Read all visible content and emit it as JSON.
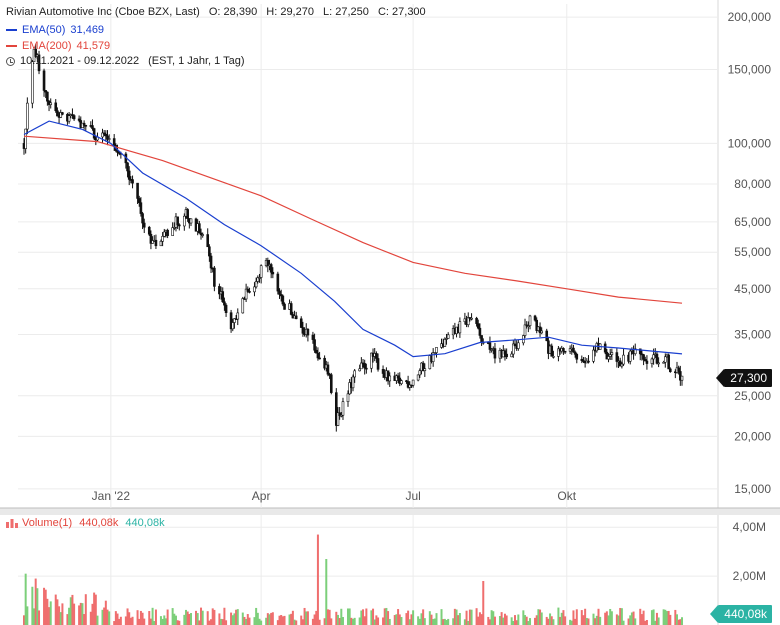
{
  "header": {
    "title": "Rivian Automotive Inc (Cboe BZX, Last)",
    "ohlc": {
      "open": "O: 28,390",
      "high": "H: 29,270",
      "low": "L: 27,250",
      "close": "C: 27,300"
    },
    "ema50": {
      "label": "EMA(50)",
      "value": "31,469",
      "color": "#1a3fcf"
    },
    "ema200": {
      "label": "EMA(200)",
      "value": "41,579",
      "color": "#e2453c"
    },
    "period": "10.11.2021 - 09.12.2022",
    "period_info": "(EST, 1 Jahr, 1 Tag)"
  },
  "volume_legend": {
    "label": "Volume(1)",
    "value_red": "440,08k",
    "value_teal": "440,08k"
  },
  "badges": {
    "price": "27,300",
    "volume": "440,08k"
  },
  "colors": {
    "price_badge": "#111111",
    "volume_badge": "#2bb3a4",
    "up": "#7ccf7a",
    "down": "#ef6e6e"
  },
  "chart_data": {
    "type": "candlestick",
    "y_scale": "log",
    "ylim": [
      13500,
      215000
    ],
    "y_ticks": [
      {
        "value": 200000,
        "label": "200,000"
      },
      {
        "value": 150000,
        "label": "150,000"
      },
      {
        "value": 100000,
        "label": "100,000"
      },
      {
        "value": 80000,
        "label": "80,000"
      },
      {
        "value": 65000,
        "label": "65,000"
      },
      {
        "value": 55000,
        "label": "55,000"
      },
      {
        "value": 45000,
        "label": "45,000"
      },
      {
        "value": 35000,
        "label": "35,000"
      },
      {
        "value": 25000,
        "label": "25,000"
      },
      {
        "value": 20000,
        "label": "20,000"
      },
      {
        "value": 15000,
        "label": "15,000"
      }
    ],
    "x_ticks": [
      {
        "date": "2022-01-01",
        "label": "Jan '22"
      },
      {
        "date": "2022-04-01",
        "label": "Apr"
      },
      {
        "date": "2022-07-01",
        "label": "Jul"
      },
      {
        "date": "2022-10-01",
        "label": "Okt"
      }
    ],
    "x_range": [
      "2021-11-10",
      "2022-12-09"
    ],
    "price_path": [
      {
        "date": "2021-11-10",
        "close": 100000
      },
      {
        "date": "2021-11-16",
        "close": 172000
      },
      {
        "date": "2021-11-22",
        "close": 130000
      },
      {
        "date": "2021-12-01",
        "close": 118000
      },
      {
        "date": "2021-12-15",
        "close": 110000
      },
      {
        "date": "2021-12-27",
        "close": 103000
      },
      {
        "date": "2022-01-07",
        "close": 97000
      },
      {
        "date": "2022-01-14",
        "close": 80000
      },
      {
        "date": "2022-01-21",
        "close": 63000
      },
      {
        "date": "2022-01-28",
        "close": 57000
      },
      {
        "date": "2022-02-04",
        "close": 62000
      },
      {
        "date": "2022-02-15",
        "close": 68000
      },
      {
        "date": "2022-02-25",
        "close": 61000
      },
      {
        "date": "2022-03-04",
        "close": 47000
      },
      {
        "date": "2022-03-14",
        "close": 37000
      },
      {
        "date": "2022-03-21",
        "close": 42000
      },
      {
        "date": "2022-03-28",
        "close": 47000
      },
      {
        "date": "2022-04-04",
        "close": 53000
      },
      {
        "date": "2022-04-11",
        "close": 43000
      },
      {
        "date": "2022-04-21",
        "close": 39000
      },
      {
        "date": "2022-05-02",
        "close": 33000
      },
      {
        "date": "2022-05-11",
        "close": 28500
      },
      {
        "date": "2022-05-16",
        "close": 22000
      },
      {
        "date": "2022-05-20",
        "close": 23500
      },
      {
        "date": "2022-05-27",
        "close": 28000
      },
      {
        "date": "2022-06-07",
        "close": 31000
      },
      {
        "date": "2022-06-17",
        "close": 27000
      },
      {
        "date": "2022-06-30",
        "close": 27000
      },
      {
        "date": "2022-07-06",
        "close": 29000
      },
      {
        "date": "2022-07-20",
        "close": 33500
      },
      {
        "date": "2022-07-29",
        "close": 36500
      },
      {
        "date": "2022-08-05",
        "close": 38500
      },
      {
        "date": "2022-08-12",
        "close": 33000
      },
      {
        "date": "2022-08-24",
        "close": 31000
      },
      {
        "date": "2022-09-02",
        "close": 33500
      },
      {
        "date": "2022-09-09",
        "close": 38000
      },
      {
        "date": "2022-09-16",
        "close": 35000
      },
      {
        "date": "2022-09-23",
        "close": 30500
      },
      {
        "date": "2022-09-30",
        "close": 32500
      },
      {
        "date": "2022-10-10",
        "close": 30000
      },
      {
        "date": "2022-10-20",
        "close": 33000
      },
      {
        "date": "2022-10-27",
        "close": 31000
      },
      {
        "date": "2022-11-03",
        "close": 30000
      },
      {
        "date": "2022-11-10",
        "close": 31500
      },
      {
        "date": "2022-11-17",
        "close": 30000
      },
      {
        "date": "2022-11-28",
        "close": 31000
      },
      {
        "date": "2022-12-05",
        "close": 28500
      },
      {
        "date": "2022-12-09",
        "close": 27300
      }
    ],
    "ema200": [
      {
        "date": "2021-11-10",
        "value": 104000
      },
      {
        "date": "2021-12-24",
        "value": 101000
      },
      {
        "date": "2022-02-01",
        "value": 91000
      },
      {
        "date": "2022-03-01",
        "value": 83000
      },
      {
        "date": "2022-04-01",
        "value": 75000
      },
      {
        "date": "2022-05-01",
        "value": 66000
      },
      {
        "date": "2022-06-01",
        "value": 58000
      },
      {
        "date": "2022-07-01",
        "value": 52000
      },
      {
        "date": "2022-08-01",
        "value": 49000
      },
      {
        "date": "2022-09-01",
        "value": 47000
      },
      {
        "date": "2022-10-01",
        "value": 45000
      },
      {
        "date": "2022-11-01",
        "value": 43000
      },
      {
        "date": "2022-12-09",
        "value": 41579
      }
    ],
    "ema50": [
      {
        "date": "2021-11-10",
        "value": 105000
      },
      {
        "date": "2021-11-25",
        "value": 113000
      },
      {
        "date": "2021-12-15",
        "value": 108000
      },
      {
        "date": "2022-01-01",
        "value": 100000
      },
      {
        "date": "2022-01-20",
        "value": 85000
      },
      {
        "date": "2022-02-15",
        "value": 74000
      },
      {
        "date": "2022-03-10",
        "value": 64000
      },
      {
        "date": "2022-04-01",
        "value": 57000
      },
      {
        "date": "2022-04-25",
        "value": 49000
      },
      {
        "date": "2022-05-15",
        "value": 42000
      },
      {
        "date": "2022-06-01",
        "value": 36000
      },
      {
        "date": "2022-06-20",
        "value": 33000
      },
      {
        "date": "2022-07-01",
        "value": 31000
      },
      {
        "date": "2022-07-20",
        "value": 31500
      },
      {
        "date": "2022-08-10",
        "value": 33500
      },
      {
        "date": "2022-09-01",
        "value": 34000
      },
      {
        "date": "2022-09-20",
        "value": 34500
      },
      {
        "date": "2022-10-10",
        "value": 33000
      },
      {
        "date": "2022-11-01",
        "value": 32500
      },
      {
        "date": "2022-12-09",
        "value": 31469
      }
    ],
    "volume": {
      "ylim": [
        0,
        4500000
      ],
      "y_ticks": [
        {
          "value": 4000000,
          "label": "4,00M"
        },
        {
          "value": 2000000,
          "label": "2,00M"
        }
      ],
      "spikes": [
        {
          "date": "2021-11-11",
          "value": 2100000
        },
        {
          "date": "2021-11-17",
          "value": 1900000
        },
        {
          "date": "2022-05-05",
          "value": 3700000
        },
        {
          "date": "2022-05-10",
          "value": 2700000
        },
        {
          "date": "2022-08-12",
          "value": 1800000
        }
      ],
      "typical": 400000
    }
  }
}
